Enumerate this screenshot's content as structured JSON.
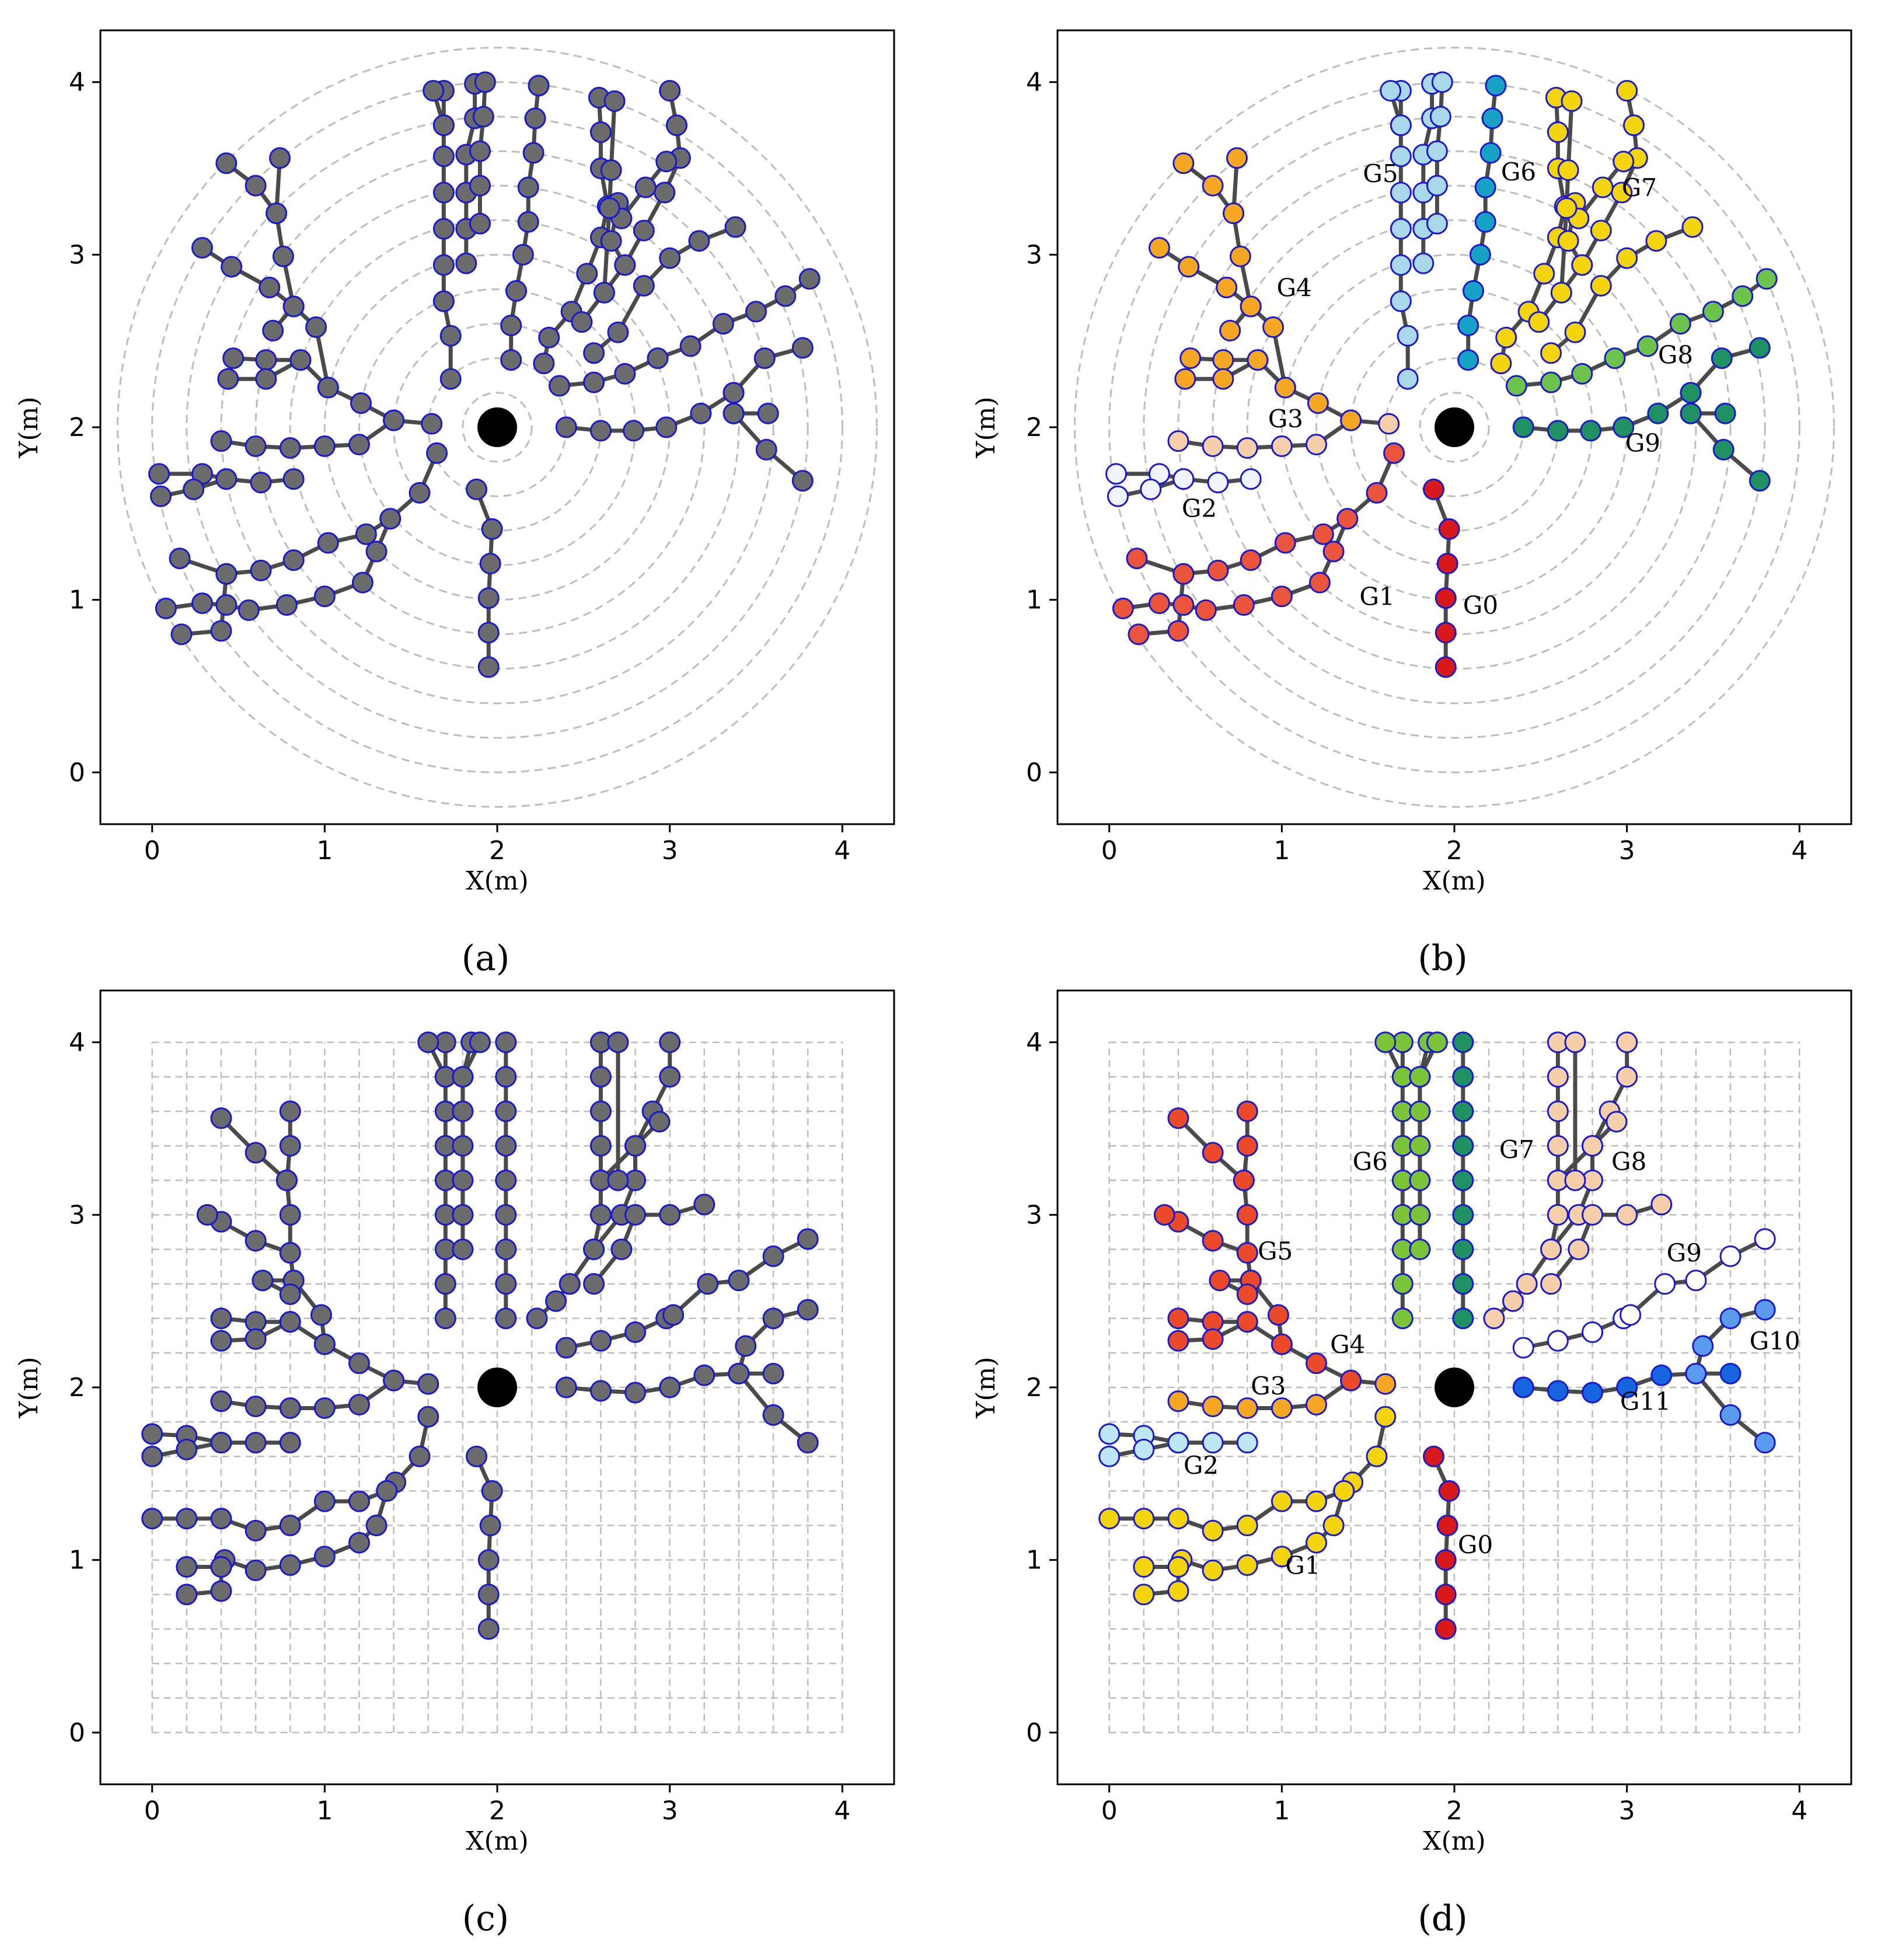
{
  "chart_data": [
    {
      "panel": "a",
      "type": "scatter",
      "caption": "(a)",
      "xlabel": "X(m)",
      "ylabel": "Y(m)",
      "xlim": [
        -0.3,
        4.3
      ],
      "ylim": [
        -0.3,
        4.3
      ],
      "xticks": [
        "0",
        "1",
        "2",
        "3",
        "4"
      ],
      "yticks": [
        "0",
        "1",
        "2",
        "3",
        "4"
      ],
      "background": "circles",
      "colored": false,
      "center": [
        2,
        2
      ],
      "groups": []
    },
    {
      "panel": "b",
      "type": "scatter",
      "caption": "(b)",
      "xlabel": "X(m)",
      "ylabel": "Y(m)",
      "xlim": [
        -0.3,
        4.3
      ],
      "ylim": [
        -0.3,
        4.3
      ],
      "xticks": [
        "0",
        "1",
        "2",
        "3",
        "4"
      ],
      "yticks": [
        "0",
        "1",
        "2",
        "3",
        "4"
      ],
      "background": "circles",
      "colored": true,
      "center": [
        2,
        2
      ],
      "groups": [
        {
          "name": "G0",
          "color": "#d7191c",
          "label_pos": [
            2.05,
            0.92
          ]
        },
        {
          "name": "G1",
          "color": "#e8553a",
          "label_pos": [
            1.45,
            0.97
          ]
        },
        {
          "name": "G2",
          "color": "#f0f4ff",
          "label_pos": [
            0.42,
            1.48
          ]
        },
        {
          "name": "G3",
          "color": "#f5cfa8",
          "label_pos": [
            0.92,
            2.0
          ]
        },
        {
          "name": "G4",
          "color": "#f5a623",
          "label_pos": [
            0.97,
            2.76
          ]
        },
        {
          "name": "G5",
          "color": "#a8d8ea",
          "label_pos": [
            1.47,
            3.42
          ]
        },
        {
          "name": "G6",
          "color": "#17a2c4",
          "label_pos": [
            2.27,
            3.43
          ]
        },
        {
          "name": "G7",
          "color": "#f2d40d",
          "label_pos": [
            2.97,
            3.34
          ]
        },
        {
          "name": "G8",
          "color": "#6cc24a",
          "label_pos": [
            3.18,
            2.37
          ]
        },
        {
          "name": "G9",
          "color": "#1f9060",
          "label_pos": [
            2.99,
            1.86
          ]
        }
      ]
    },
    {
      "panel": "c",
      "type": "scatter",
      "caption": "(c)",
      "xlabel": "X(m)",
      "ylabel": "Y(m)",
      "xlim": [
        -0.3,
        4.3
      ],
      "ylim": [
        -0.3,
        4.3
      ],
      "xticks": [
        "0",
        "1",
        "2",
        "3",
        "4"
      ],
      "yticks": [
        "0",
        "1",
        "2",
        "3",
        "4"
      ],
      "background": "grid",
      "colored": false,
      "center": [
        2,
        2
      ],
      "groups": []
    },
    {
      "panel": "d",
      "type": "scatter",
      "caption": "(d)",
      "xlabel": "X(m)",
      "ylabel": "Y(m)",
      "xlim": [
        -0.3,
        4.3
      ],
      "ylim": [
        -0.3,
        4.3
      ],
      "xticks": [
        "0",
        "1",
        "2",
        "3",
        "4"
      ],
      "yticks": [
        "0",
        "1",
        "2",
        "3",
        "4"
      ],
      "background": "grid",
      "colored": true,
      "center": [
        2,
        2
      ],
      "groups": [
        {
          "name": "G0",
          "color": "#d7191c",
          "label_pos": [
            2.02,
            1.04
          ]
        },
        {
          "name": "G1",
          "color": "#f2d40d",
          "label_pos": [
            1.02,
            0.92
          ]
        },
        {
          "name": "G2",
          "color": "#bfe6f5",
          "label_pos": [
            0.43,
            1.5
          ]
        },
        {
          "name": "G3",
          "color": "#17a2c4",
          "label_pos": [
            0.82,
            1.96
          ]
        },
        {
          "name": "G4",
          "color": "#f5a623",
          "label_pos": [
            1.28,
            2.2
          ]
        },
        {
          "name": "G5",
          "color": "#e84a2a",
          "label_pos": [
            0.86,
            2.74
          ]
        },
        {
          "name": "G6",
          "color": "#7bc43a",
          "label_pos": [
            1.41,
            3.26
          ]
        },
        {
          "name": "G7",
          "color": "#1f9060",
          "label_pos": [
            2.26,
            3.33
          ]
        },
        {
          "name": "G8",
          "color": "#f5cfa8",
          "label_pos": [
            2.91,
            3.26
          ]
        },
        {
          "name": "G9",
          "color": "#ffffff",
          "label_pos": [
            3.23,
            2.73
          ]
        },
        {
          "name": "G10",
          "color": "#5a9bf0",
          "label_pos": [
            3.71,
            2.22
          ]
        },
        {
          "name": "G11",
          "color": "#1565e0",
          "label_pos": [
            2.96,
            1.87
          ]
        }
      ]
    }
  ]
}
